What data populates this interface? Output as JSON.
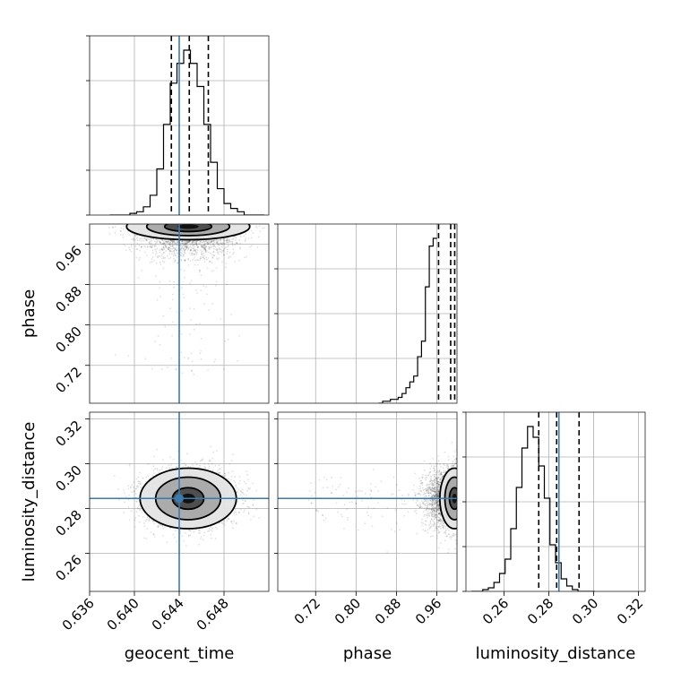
{
  "chart_data": {
    "type": "scatter",
    "parameters": [
      "geocent_time",
      "phase",
      "luminosity_distance"
    ],
    "truths": {
      "geocent_time": 0.644,
      "luminosity_distance": 0.2845
    },
    "colors": {
      "truth": "#3a7ab0",
      "quantile": "#000000",
      "hist": "#000000"
    },
    "axes": {
      "geocent_time": {
        "label": "geocent_time",
        "range": [
          0.636,
          0.652
        ],
        "ticks": [
          0.636,
          0.64,
          0.644,
          0.648
        ],
        "tick_labels": [
          "0.636",
          "0.640",
          "0.644",
          "0.648"
        ]
      },
      "phase": {
        "label": "phase",
        "range": [
          0.645,
          1.0
        ],
        "ticks": [
          0.72,
          0.8,
          0.88,
          0.96
        ],
        "tick_labels": [
          "0.72",
          "0.80",
          "0.88",
          "0.96"
        ]
      },
      "luminosity_distance": {
        "label": "luminosity_distance",
        "range": [
          0.243,
          0.323
        ],
        "ticks": [
          0.26,
          0.28,
          0.3,
          0.32
        ],
        "tick_labels": [
          "0.26",
          "0.28",
          "0.30",
          "0.32"
        ]
      }
    },
    "marginals": {
      "geocent_time": {
        "quantiles": [
          0.6433,
          0.6449,
          0.6466
        ],
        "bin_start": 0.6378,
        "bin_width": 0.0006,
        "counts": [
          0,
          0,
          0,
          1,
          2,
          5,
          12,
          28,
          55,
          80,
          92,
          100,
          92,
          78,
          55,
          32,
          16,
          7,
          4,
          2,
          0,
          0,
          0
        ]
      },
      "phase": {
        "quantiles": [
          0.9635,
          0.9875,
          0.9955
        ],
        "bin_start": 0.845,
        "bin_width": 0.0077,
        "counts": [
          0,
          1,
          1,
          2,
          2,
          3,
          5,
          8,
          11,
          14,
          24,
          32,
          60,
          81,
          85
        ]
      },
      "luminosity_distance": {
        "quantiles": [
          0.2755,
          0.2835,
          0.2935
        ],
        "bin_start": 0.2455,
        "bin_width": 0.0025,
        "counts": [
          0,
          0,
          1,
          2,
          5,
          10,
          18,
          35,
          58,
          80,
          92,
          86,
          70,
          52,
          26,
          16,
          7,
          3,
          1,
          0,
          0,
          0
        ]
      }
    },
    "joint": {
      "phase_vs_geocent_time": {
        "center": [
          0.6448,
          0.995
        ],
        "spread": [
          0.0022,
          0.026
        ],
        "contour_radii": [
          [
            0.0021,
            0.01
          ],
          [
            0.0037,
            0.018
          ],
          [
            0.0055,
            0.026
          ]
        ]
      },
      "luminosity_distance_vs_geocent_time": {
        "center": [
          0.6448,
          0.2845
        ],
        "spread": [
          0.0021,
          0.0065
        ],
        "contour_radii": [
          [
            0.0014,
            0.0048
          ],
          [
            0.0029,
            0.0095
          ],
          [
            0.0043,
            0.0135
          ]
        ]
      },
      "luminosity_distance_vs_phase": {
        "center": [
          0.995,
          0.2845
        ],
        "spread": [
          0.026,
          0.0065
        ],
        "contour_radii": [
          [
            0.01,
            0.0048
          ],
          [
            0.019,
            0.0095
          ],
          [
            0.029,
            0.0135
          ]
        ]
      }
    }
  }
}
